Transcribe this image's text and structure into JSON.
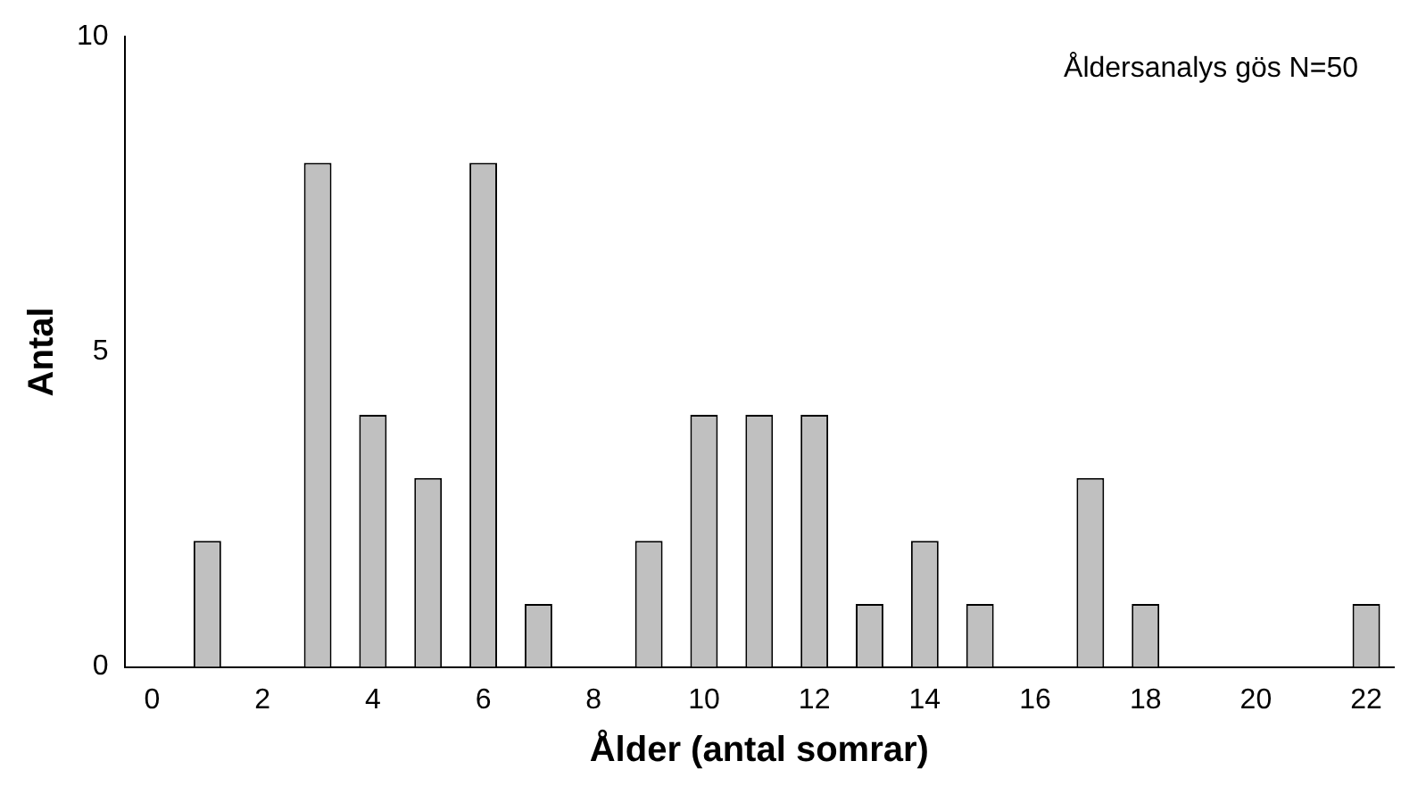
{
  "chart_data": {
    "type": "bar",
    "categories": [
      "0",
      null,
      "2",
      null,
      "4",
      null,
      "6",
      null,
      "8",
      null,
      "10",
      null,
      "12",
      null,
      "14",
      null,
      "16",
      null,
      "18",
      null,
      "20",
      null,
      "22"
    ],
    "values": [
      0,
      2,
      0,
      8,
      4,
      3,
      8,
      1,
      0,
      2,
      4,
      4,
      4,
      1,
      2,
      1,
      0,
      3,
      1,
      0,
      0,
      0,
      1
    ],
    "color": "#c0c0c0",
    "xlabel": "Ålder (antal somrar)",
    "ylabel": "Antal",
    "ylim": [
      0,
      10
    ],
    "yticks": [
      0,
      5,
      10
    ],
    "grid": false,
    "legend": false,
    "annotations": [
      "Åldersanalys gös N=50"
    ]
  }
}
